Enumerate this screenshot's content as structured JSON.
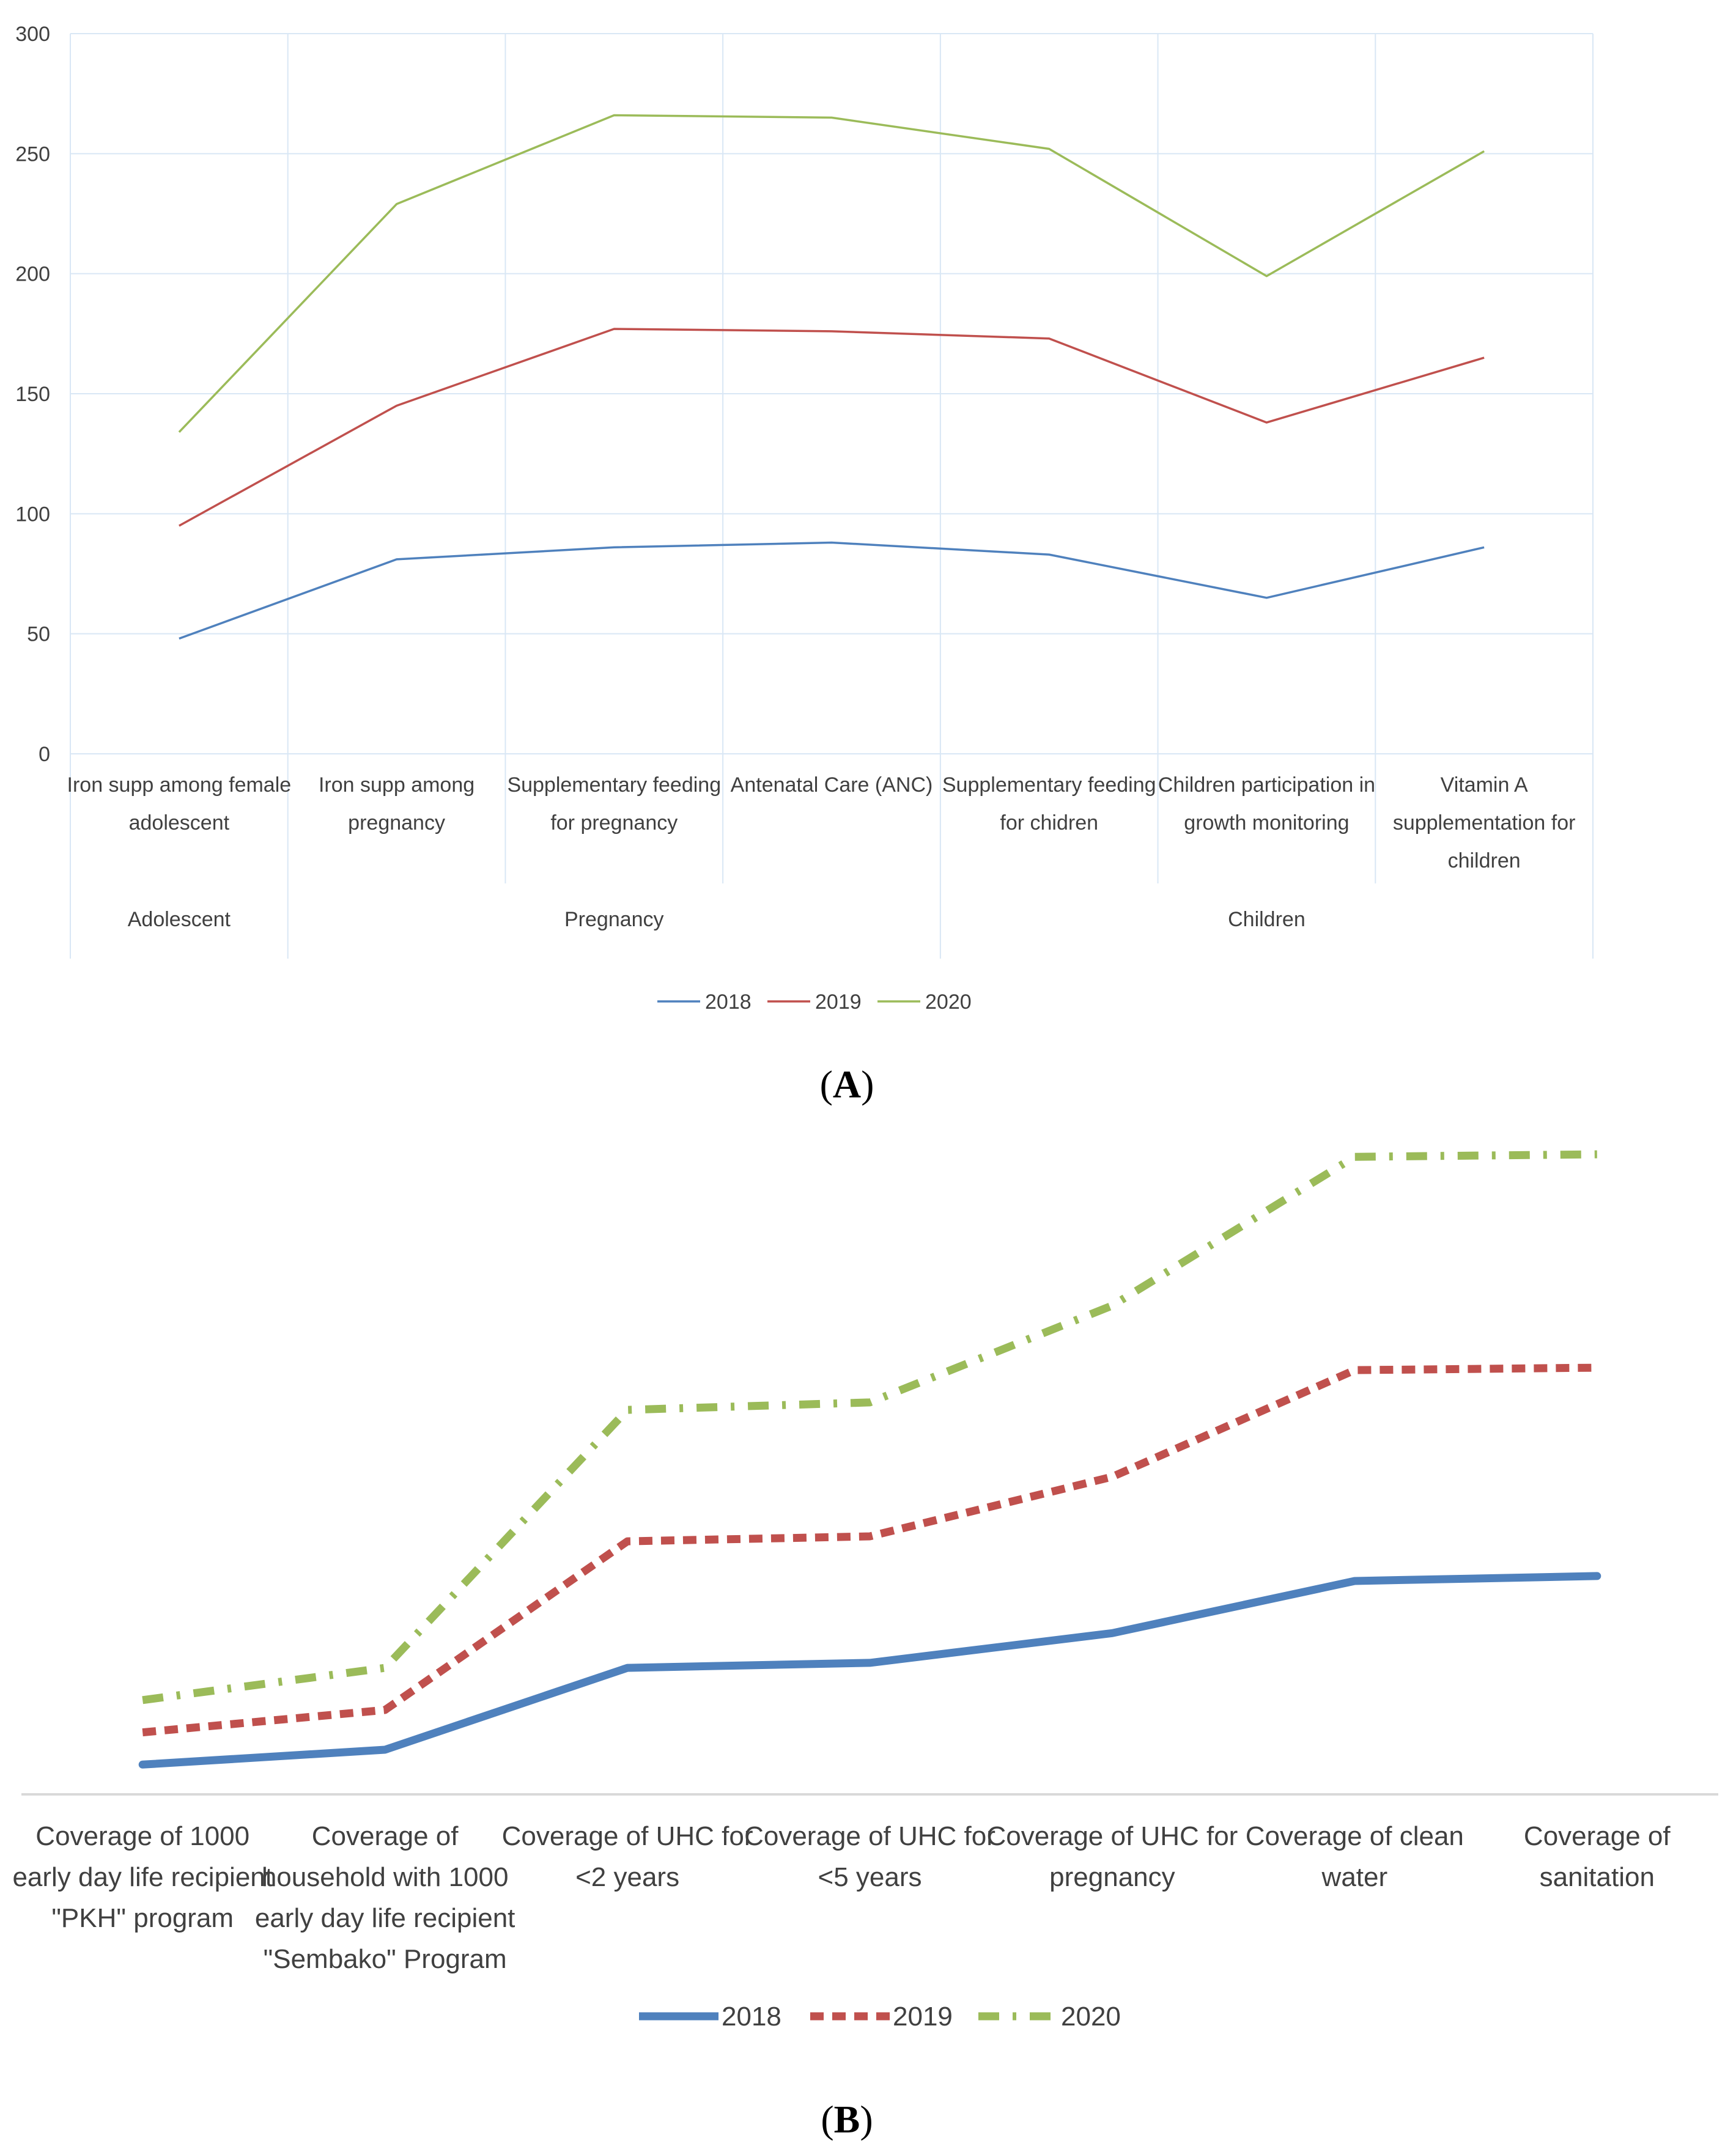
{
  "colors": {
    "series_2018_a": "#4F81BD",
    "series_2019_a": "#C0504D",
    "series_2020_a": "#9BBB59",
    "series_2018_b": "#4F81BD",
    "series_2019_b": "#C0504D",
    "series_2020_b": "#9BBB59",
    "gridline": "#D9E7F5",
    "axis_line": "#D9D9D9",
    "text": "#404040"
  },
  "panels": {
    "a": {
      "label_paren_open": "(",
      "label_letter": "A",
      "label_paren_close": ")"
    },
    "b": {
      "label_paren_open": "(",
      "label_letter": "B",
      "label_paren_close": ")"
    }
  },
  "chart_data": [
    {
      "id": "panel-a",
      "type": "line",
      "title": "",
      "xlabel": "",
      "ylabel": "",
      "ylim": [
        0,
        300
      ],
      "yticks": [
        0,
        50,
        100,
        150,
        200,
        250,
        300
      ],
      "ytick_labels": [
        "0",
        "50",
        "100",
        "150",
        "200",
        "250",
        "300"
      ],
      "grid": true,
      "legend_position": "bottom",
      "categories": [
        [
          "Iron supp among female",
          "adolescent"
        ],
        [
          "Iron supp among",
          "pregnancy"
        ],
        [
          "Supplementary feeding",
          "for pregnancy"
        ],
        [
          "Antenatal Care (ANC)"
        ],
        [
          "Supplementary feeding",
          "for chidren"
        ],
        [
          "Children participation in",
          "growth monitoring"
        ],
        [
          "Vitamin A",
          "supplementation for",
          "children"
        ]
      ],
      "groups": [
        {
          "name": "Adolescent",
          "span": [
            0,
            0
          ]
        },
        {
          "name": "Pregnancy",
          "span": [
            1,
            3
          ]
        },
        {
          "name": "Children",
          "span": [
            4,
            6
          ]
        }
      ],
      "series": [
        {
          "name": "2018",
          "style": "solid",
          "values": [
            48,
            81,
            86,
            88,
            83,
            65,
            86
          ]
        },
        {
          "name": "2019",
          "style": "solid",
          "values": [
            95,
            145,
            177,
            176,
            173,
            138,
            165
          ]
        },
        {
          "name": "2020",
          "style": "solid",
          "values": [
            134,
            229,
            266,
            265,
            252,
            199,
            251
          ]
        }
      ]
    },
    {
      "id": "panel-b",
      "type": "line",
      "title": "",
      "xlabel": "",
      "ylabel": "",
      "ylim": [
        0,
        260
      ],
      "grid": false,
      "legend_position": "bottom",
      "categories": [
        [
          "Coverage of 1000",
          "early day life recipient",
          "\"PKH\" program"
        ],
        [
          "Coverage of",
          "household with 1000",
          "early day life recipient",
          "\"Sembako\" Program"
        ],
        [
          "Coverage of UHC for",
          "<2 years"
        ],
        [
          "Coverage of UHC for",
          "<5 years"
        ],
        [
          "Coverage of UHC for",
          "pregnancy"
        ],
        [
          "Coverage of clean",
          "water"
        ],
        [
          "Coverage of",
          "sanitation"
        ]
      ],
      "series": [
        {
          "name": "2018",
          "style": "solid",
          "values": [
            12,
            18,
            51,
            53,
            65,
            86,
            88
          ]
        },
        {
          "name": "2019",
          "style": "dash",
          "values": [
            25,
            34,
            102,
            104,
            128,
            171,
            172
          ]
        },
        {
          "name": "2020",
          "style": "dashdot",
          "values": [
            38,
            51,
            155,
            158,
            197,
            257,
            258
          ]
        }
      ]
    }
  ]
}
